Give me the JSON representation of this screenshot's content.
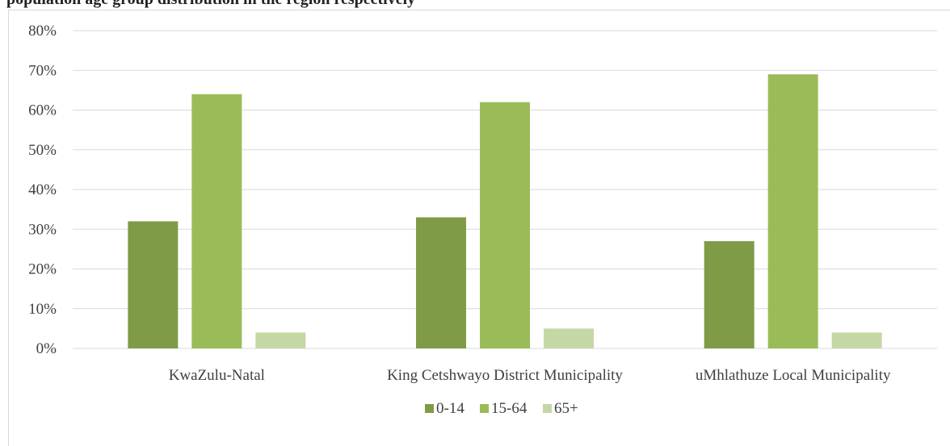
{
  "caption_fragment": "population age group distribution in the region respectively",
  "chart_data": {
    "type": "bar",
    "categories": [
      "KwaZulu-Natal",
      "King Cetshwayo District Municipality",
      "uMhlathuze Local Municipality"
    ],
    "series": [
      {
        "name": "0-14",
        "values": [
          32,
          33,
          27
        ],
        "color": "#7f9b48"
      },
      {
        "name": "15-64",
        "values": [
          64,
          62,
          69
        ],
        "color": "#9bbb59"
      },
      {
        "name": "65+",
        "values": [
          4,
          5,
          4
        ],
        "color": "#c6d7a6"
      }
    ],
    "ylim": [
      0,
      80
    ],
    "yticks": [
      "0%",
      "10%",
      "20%",
      "30%",
      "40%",
      "50%",
      "60%",
      "70%",
      "80%"
    ],
    "ytick_values": [
      0,
      10,
      20,
      30,
      40,
      50,
      60,
      70,
      80
    ],
    "grid": true,
    "legend_position": "bottom"
  }
}
